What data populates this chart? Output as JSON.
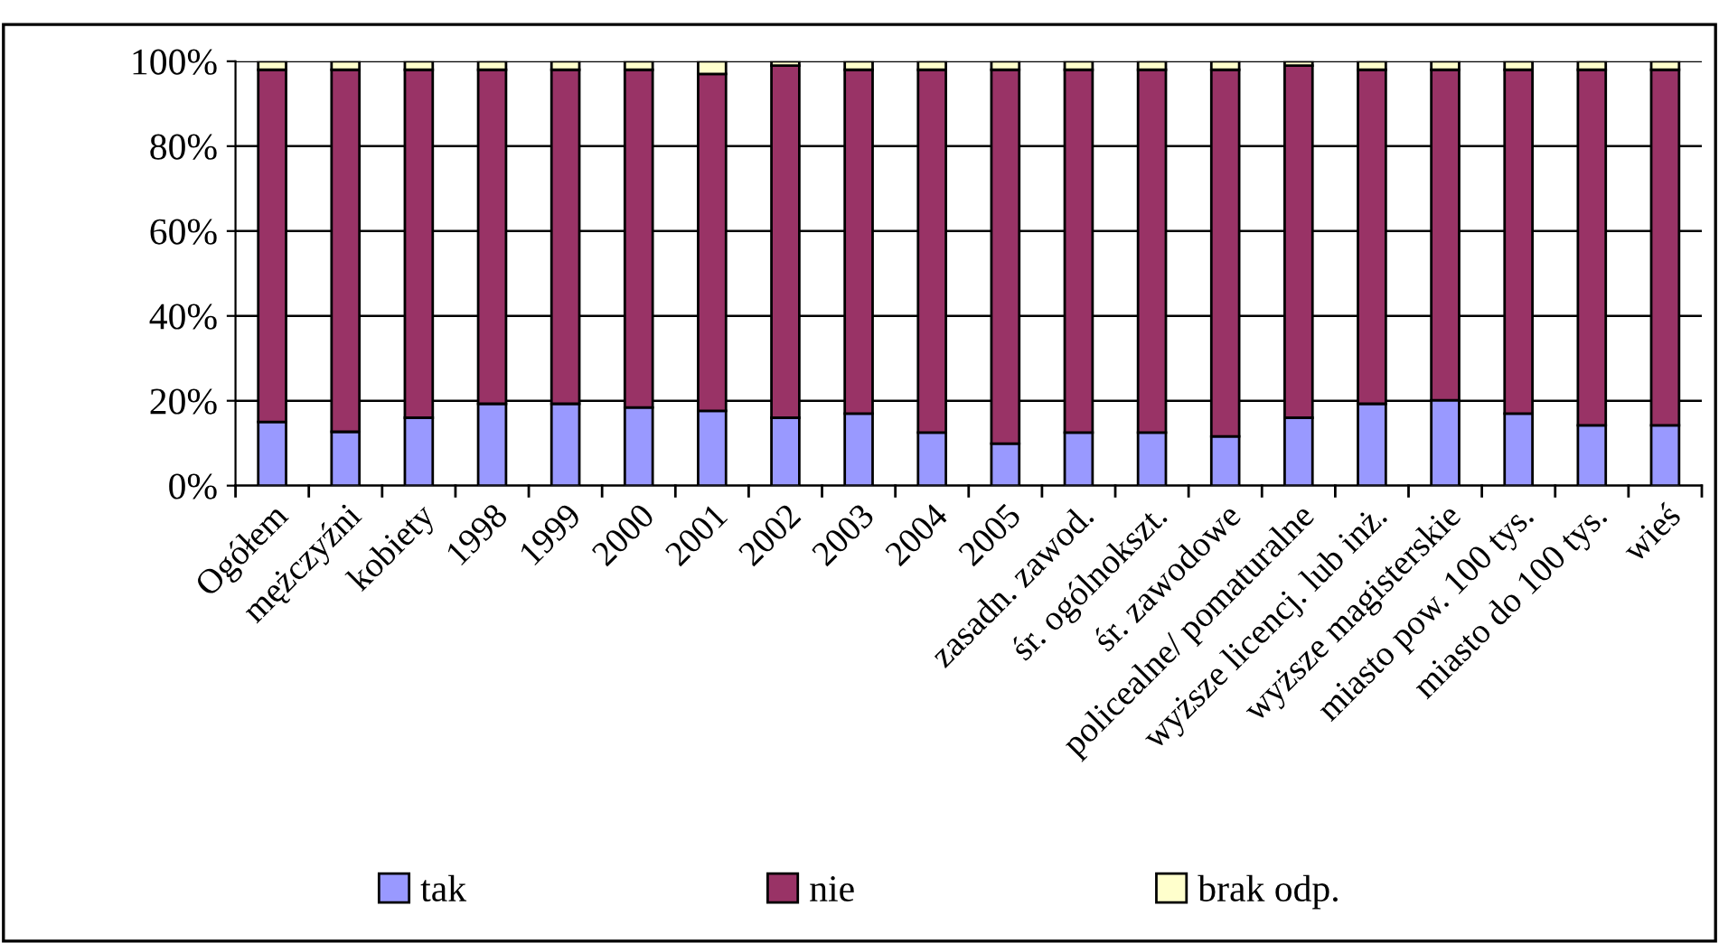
{
  "chart_data": {
    "type": "bar",
    "stacked": true,
    "categories": [
      "Ogółem",
      "mężczyźni",
      "kobiety",
      "1998",
      "1999",
      "2000",
      "2001",
      "2002",
      "2003",
      "2004",
      "2005",
      "zasadn. zawod.",
      "śr. ogólnokszt.",
      "śr. zawodowe",
      "policealne/ pomaturalne",
      "wyższe licencj. lub inż.",
      "wyższe magisterskie",
      "miasto pow. 100 tys.",
      "miasto do 100 tys.",
      "wieś"
    ],
    "series": [
      {
        "name": "tak",
        "color": "#9999ff",
        "values": [
          15.0,
          12.7,
          16.0,
          19.3,
          19.3,
          18.4,
          17.6,
          16.0,
          17.0,
          12.5,
          9.9,
          12.5,
          12.5,
          11.6,
          16.0,
          19.3,
          20.1,
          17.0,
          14.2,
          14.2
        ]
      },
      {
        "name": "nie",
        "color": "#993366",
        "values": [
          83.0,
          85.3,
          82.0,
          78.7,
          78.7,
          79.6,
          79.4,
          83.0,
          81.0,
          85.5,
          88.1,
          85.5,
          85.5,
          86.4,
          83.0,
          78.7,
          77.9,
          81.0,
          83.8,
          83.8
        ]
      },
      {
        "name": "brak odp.",
        "color": "#ffffcc",
        "values": [
          2,
          2,
          2,
          2,
          2,
          2,
          3,
          1,
          2,
          2,
          2,
          2,
          2,
          2,
          1,
          2,
          2,
          2,
          2,
          2
        ]
      }
    ],
    "ylim": [
      0,
      100
    ],
    "yticks": [
      {
        "value": 0,
        "label": "0%"
      },
      {
        "value": 20,
        "label": "20%"
      },
      {
        "value": 40,
        "label": "40%"
      },
      {
        "value": 60,
        "label": "60%"
      },
      {
        "value": 80,
        "label": "80%"
      },
      {
        "value": 100,
        "label": "100%"
      }
    ],
    "grid": "y",
    "legend": "bottom"
  }
}
